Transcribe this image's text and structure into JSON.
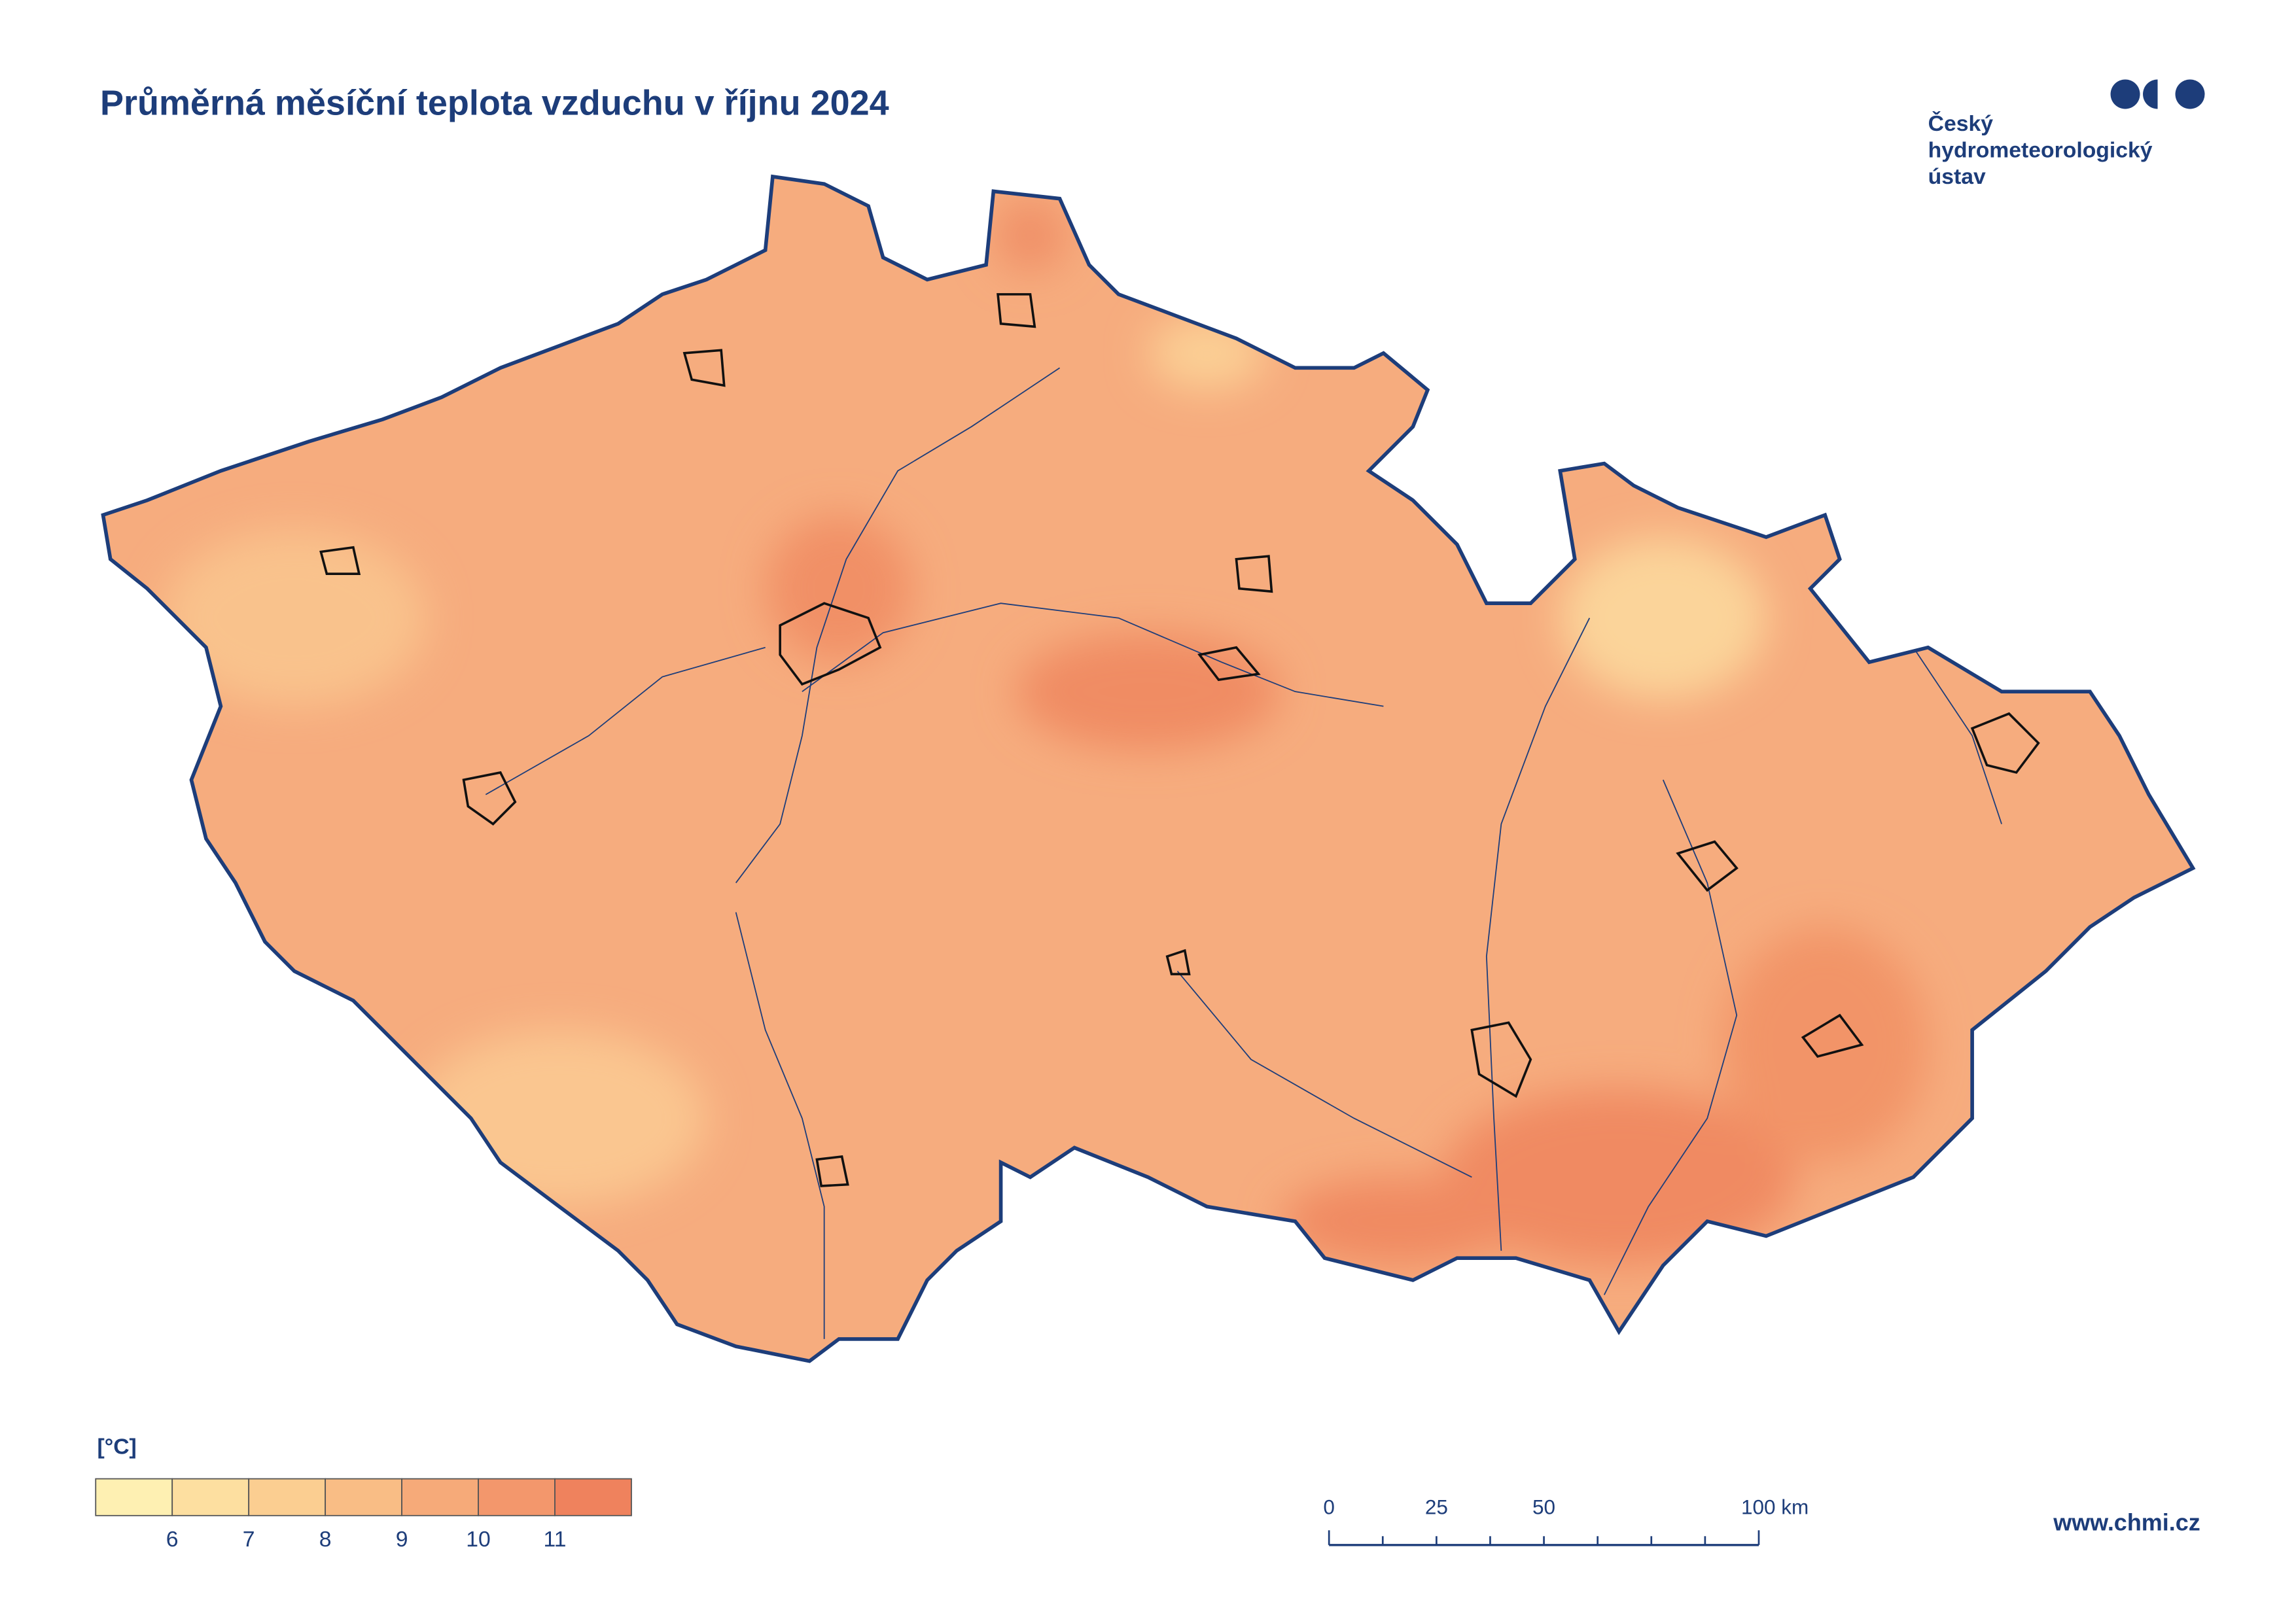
{
  "title": "Průměrná měsíční teplota vzduchu v říjnu 2024",
  "logo": {
    "lines": [
      "Český",
      "hydrometeorologický",
      "ústav"
    ]
  },
  "legend": {
    "unit": "[°C]",
    "colors": [
      "#fef0b2",
      "#fddfa0",
      "#fbce91",
      "#f9bd85",
      "#f6aa79",
      "#f3976c",
      "#ef825d"
    ],
    "ticks": [
      6,
      7,
      8,
      9,
      10,
      11
    ]
  },
  "scale_bar": {
    "labels": [
      "0",
      "25",
      "50",
      "100 km"
    ]
  },
  "url": "www.chmi.cz"
}
